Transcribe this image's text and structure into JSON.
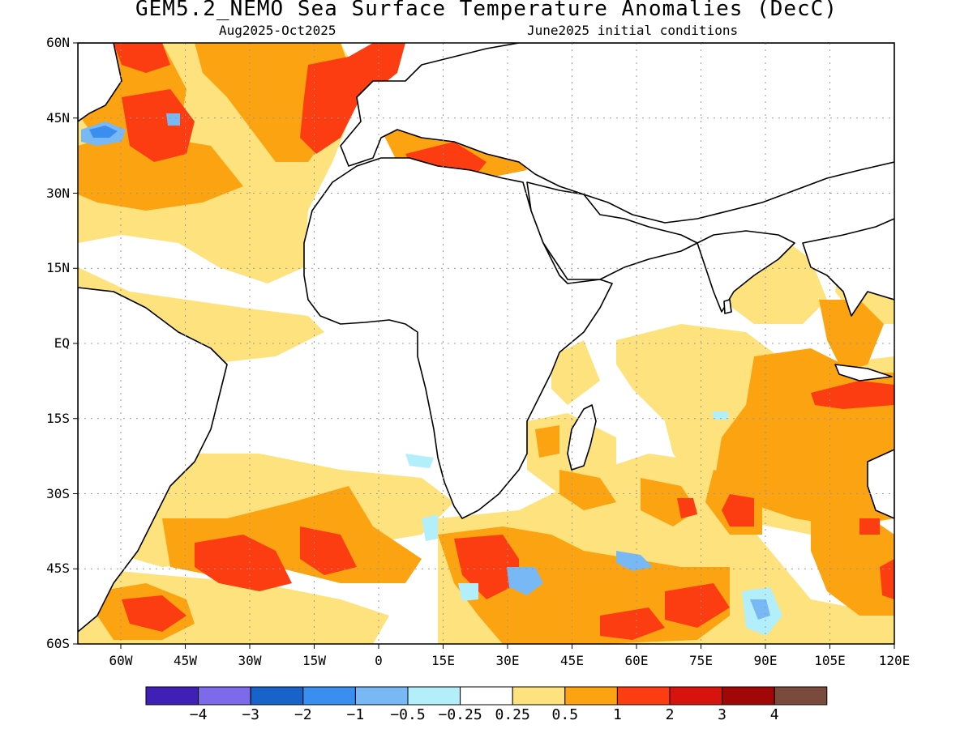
{
  "title": "GEM5.2_NEMO Sea Surface Temperature Anomalies (DecC)",
  "subtitle_left": "Aug2025-Oct2025",
  "subtitle_right": "June2025 initial conditions",
  "map": {
    "lat_ticks": [
      "60N",
      "45N",
      "30N",
      "15N",
      "EQ",
      "15S",
      "30S",
      "45S",
      "60S"
    ],
    "lon_ticks": [
      "60W",
      "45W",
      "30W",
      "15W",
      "0",
      "15E",
      "30E",
      "45E",
      "60E",
      "75E",
      "90E",
      "105E",
      "120E"
    ],
    "lon_range": [
      -70,
      120
    ],
    "lat_range": [
      -60,
      60
    ]
  },
  "colorbar": {
    "colors": [
      "#3f1fb5",
      "#7d6aeb",
      "#1763c9",
      "#3a8ef0",
      "#78b8f5",
      "#b2effa",
      "#ffffff",
      "#fde27d",
      "#fba311",
      "#fc3d12",
      "#d6130d",
      "#a10707",
      "#7a4b3d"
    ],
    "labels": [
      "−4",
      "−3",
      "−2",
      "−1",
      "−0.5",
      "−0.25",
      "0.25",
      "0.5",
      "1",
      "2",
      "3",
      "4"
    ]
  }
}
